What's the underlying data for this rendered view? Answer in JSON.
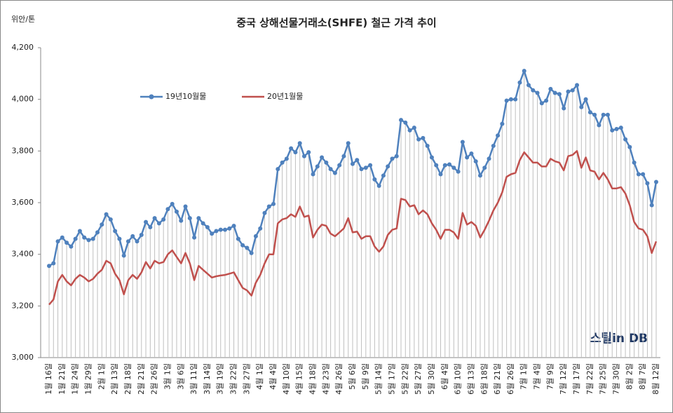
{
  "chart_data": {
    "type": "line",
    "title": "중국 상해선물거래소(SHFE)  철근 가격 추이",
    "y_axis_label": "위안/톤",
    "watermark": "스틸in DB",
    "categories": [
      "1월 16일",
      null,
      null,
      "1월 21일",
      null,
      null,
      "1월 24일",
      null,
      null,
      "1월 29일",
      null,
      null,
      "2월 1일",
      null,
      null,
      "2월 13일",
      null,
      null,
      "2월 18일",
      null,
      null,
      "2월 21일",
      null,
      null,
      "2월 26일",
      null,
      null,
      "3월 1일",
      null,
      null,
      "3월 6일",
      null,
      null,
      "3월 11일",
      null,
      null,
      "3월 14일",
      null,
      null,
      "3월 19일",
      null,
      null,
      "3월 22일",
      null,
      null,
      "3월 27일",
      null,
      null,
      "4월 1일",
      null,
      null,
      "4월 4일",
      null,
      null,
      "4월 10일",
      null,
      null,
      "4월 15일",
      null,
      null,
      "4월 18일",
      null,
      null,
      "4월 23일",
      null,
      null,
      "4월 26일",
      null,
      null,
      "5월 6일",
      null,
      null,
      "5월 9일",
      null,
      null,
      "5월 14일",
      null,
      null,
      "5월 17일",
      null,
      null,
      "5월 22일",
      null,
      null,
      "5월 27일",
      null,
      null,
      "5월 30일",
      null,
      null,
      "6월 4일",
      null,
      null,
      "6월 10일",
      null,
      null,
      "6월 13일",
      null,
      null,
      "6월 18일",
      null,
      null,
      "6월 21일",
      null,
      null,
      "6월 26일",
      null,
      null,
      "7월 1일",
      null,
      null,
      "7월 4일",
      null,
      null,
      "7월 9일",
      null,
      null,
      "7월 12일",
      null,
      null,
      "7월 17일",
      null,
      null,
      "7월 22일",
      null,
      null,
      "7월 25일",
      null,
      null,
      "7월 30일",
      null,
      null,
      "8월 2일",
      null,
      null,
      "8월 7일",
      null,
      null,
      "8월 12일"
    ],
    "series": [
      {
        "name": "19년10월물",
        "color": "#4f81bd",
        "marker": true,
        "values": [
          3355,
          3365,
          3450,
          3465,
          3445,
          3430,
          3460,
          3490,
          3465,
          3455,
          3460,
          3485,
          3515,
          3555,
          3535,
          3490,
          3460,
          3395,
          3450,
          3470,
          3450,
          3475,
          3525,
          3505,
          3540,
          3520,
          3535,
          3575,
          3595,
          3565,
          3530,
          3585,
          3540,
          3465,
          3540,
          3520,
          3505,
          3480,
          3490,
          3495,
          3495,
          3500,
          3510,
          3460,
          3435,
          3425,
          3405,
          3470,
          3500,
          3560,
          3585,
          3595,
          3730,
          3755,
          3770,
          3810,
          3795,
          3830,
          3780,
          3795,
          3710,
          3740,
          3775,
          3755,
          3730,
          3715,
          3745,
          3780,
          3830,
          3750,
          3765,
          3730,
          3735,
          3745,
          3690,
          3665,
          3705,
          3740,
          3770,
          3780,
          3920,
          3910,
          3880,
          3890,
          3845,
          3850,
          3820,
          3775,
          3745,
          3710,
          3745,
          3748,
          3735,
          3720,
          3835,
          3775,
          3790,
          3760,
          3705,
          3735,
          3770,
          3820,
          3860,
          3905,
          3995,
          4000,
          4000,
          4065,
          4110,
          4055,
          4035,
          4025,
          3985,
          3995,
          4040,
          4025,
          4020,
          3965,
          4030,
          4035,
          4055,
          3970,
          4000,
          3950,
          3940,
          3900,
          3940,
          3940,
          3880,
          3885,
          3890,
          3845,
          3815,
          3755,
          3710,
          3710,
          3675,
          3590,
          3680
        ]
      },
      {
        "name": "20년1월물",
        "color": "#c0504d",
        "marker": false,
        "values": [
          3205,
          3225,
          3295,
          3320,
          3295,
          3280,
          3305,
          3320,
          3310,
          3295,
          3305,
          3325,
          3340,
          3375,
          3365,
          3325,
          3300,
          3245,
          3300,
          3320,
          3305,
          3330,
          3370,
          3345,
          3375,
          3365,
          3370,
          3400,
          3415,
          3390,
          3365,
          3405,
          3365,
          3300,
          3355,
          3340,
          3325,
          3310,
          3315,
          3318,
          3320,
          3325,
          3330,
          3300,
          3270,
          3260,
          3240,
          3290,
          3320,
          3365,
          3400,
          3400,
          3520,
          3535,
          3540,
          3555,
          3545,
          3585,
          3545,
          3550,
          3465,
          3495,
          3515,
          3510,
          3480,
          3470,
          3485,
          3500,
          3540,
          3485,
          3488,
          3460,
          3470,
          3470,
          3430,
          3410,
          3430,
          3475,
          3495,
          3500,
          3615,
          3610,
          3585,
          3590,
          3555,
          3570,
          3555,
          3520,
          3495,
          3460,
          3495,
          3495,
          3485,
          3460,
          3560,
          3515,
          3525,
          3510,
          3465,
          3495,
          3530,
          3570,
          3600,
          3640,
          3700,
          3710,
          3715,
          3765,
          3795,
          3775,
          3755,
          3755,
          3740,
          3740,
          3770,
          3760,
          3755,
          3725,
          3780,
          3785,
          3800,
          3735,
          3775,
          3725,
          3720,
          3690,
          3715,
          3690,
          3655,
          3655,
          3660,
          3635,
          3590,
          3525,
          3500,
          3495,
          3470,
          3405,
          3450
        ]
      }
    ],
    "ylim": [
      3000,
      4200
    ],
    "yticks": [
      {
        "value": 3000,
        "label": "3,000"
      },
      {
        "value": 3200,
        "label": "3,200"
      },
      {
        "value": 3400,
        "label": "3,400"
      },
      {
        "value": 3600,
        "label": "3,600"
      },
      {
        "value": 3800,
        "label": "3,800"
      },
      {
        "value": 4000,
        "label": "4,000"
      },
      {
        "value": 4200,
        "label": "4,200"
      }
    ],
    "drop_lines": true,
    "drop_line_color": "#bfbfbf",
    "grid": false,
    "legend": "top-left"
  }
}
